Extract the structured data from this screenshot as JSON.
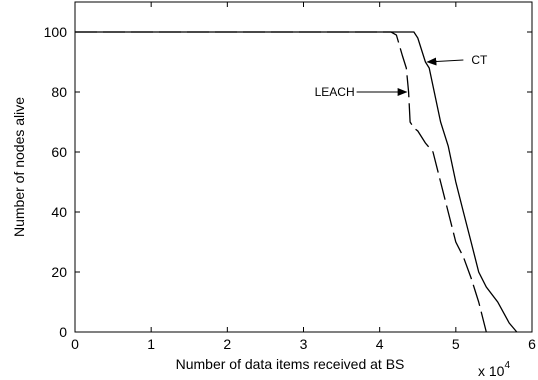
{
  "chart_data": {
    "type": "line",
    "title": "",
    "xlabel": "Number of data items received at BS",
    "ylabel": "Number of nodes alive",
    "x_multiplier_label": "x 10",
    "x_multiplier_exponent": "4",
    "xlim": [
      0,
      6
    ],
    "ylim": [
      0,
      110
    ],
    "x_ticks": [
      "0",
      "1",
      "2",
      "3",
      "4",
      "5",
      "6"
    ],
    "y_ticks": [
      "0",
      "20",
      "40",
      "60",
      "80",
      "100"
    ],
    "grid": false,
    "series": [
      {
        "name": "CT",
        "style": "solid",
        "x": [
          0,
          4.45,
          4.5,
          4.6,
          4.65,
          4.7,
          4.8,
          4.9,
          5.0,
          5.1,
          5.2,
          5.3,
          5.4,
          5.55,
          5.7,
          5.8
        ],
        "y": [
          100,
          100,
          98,
          90,
          88,
          82,
          70,
          62,
          50,
          40,
          30,
          20,
          15,
          10,
          3,
          0
        ]
      },
      {
        "name": "LEACH",
        "style": "dashed",
        "x": [
          0,
          4.15,
          4.22,
          4.3,
          4.35,
          4.38,
          4.4,
          4.45,
          4.5,
          4.6,
          4.7,
          4.8,
          4.9,
          5.0,
          5.1,
          5.2,
          5.25,
          5.3,
          5.35,
          5.4
        ],
        "y": [
          100,
          100,
          99,
          92,
          88,
          80,
          70,
          68,
          67,
          63,
          60,
          50,
          40,
          30,
          25,
          18,
          14,
          10,
          5,
          0
        ]
      }
    ],
    "annotations": [
      {
        "text": "CT",
        "series": "CT"
      },
      {
        "text": "LEACH",
        "series": "LEACH"
      }
    ]
  }
}
